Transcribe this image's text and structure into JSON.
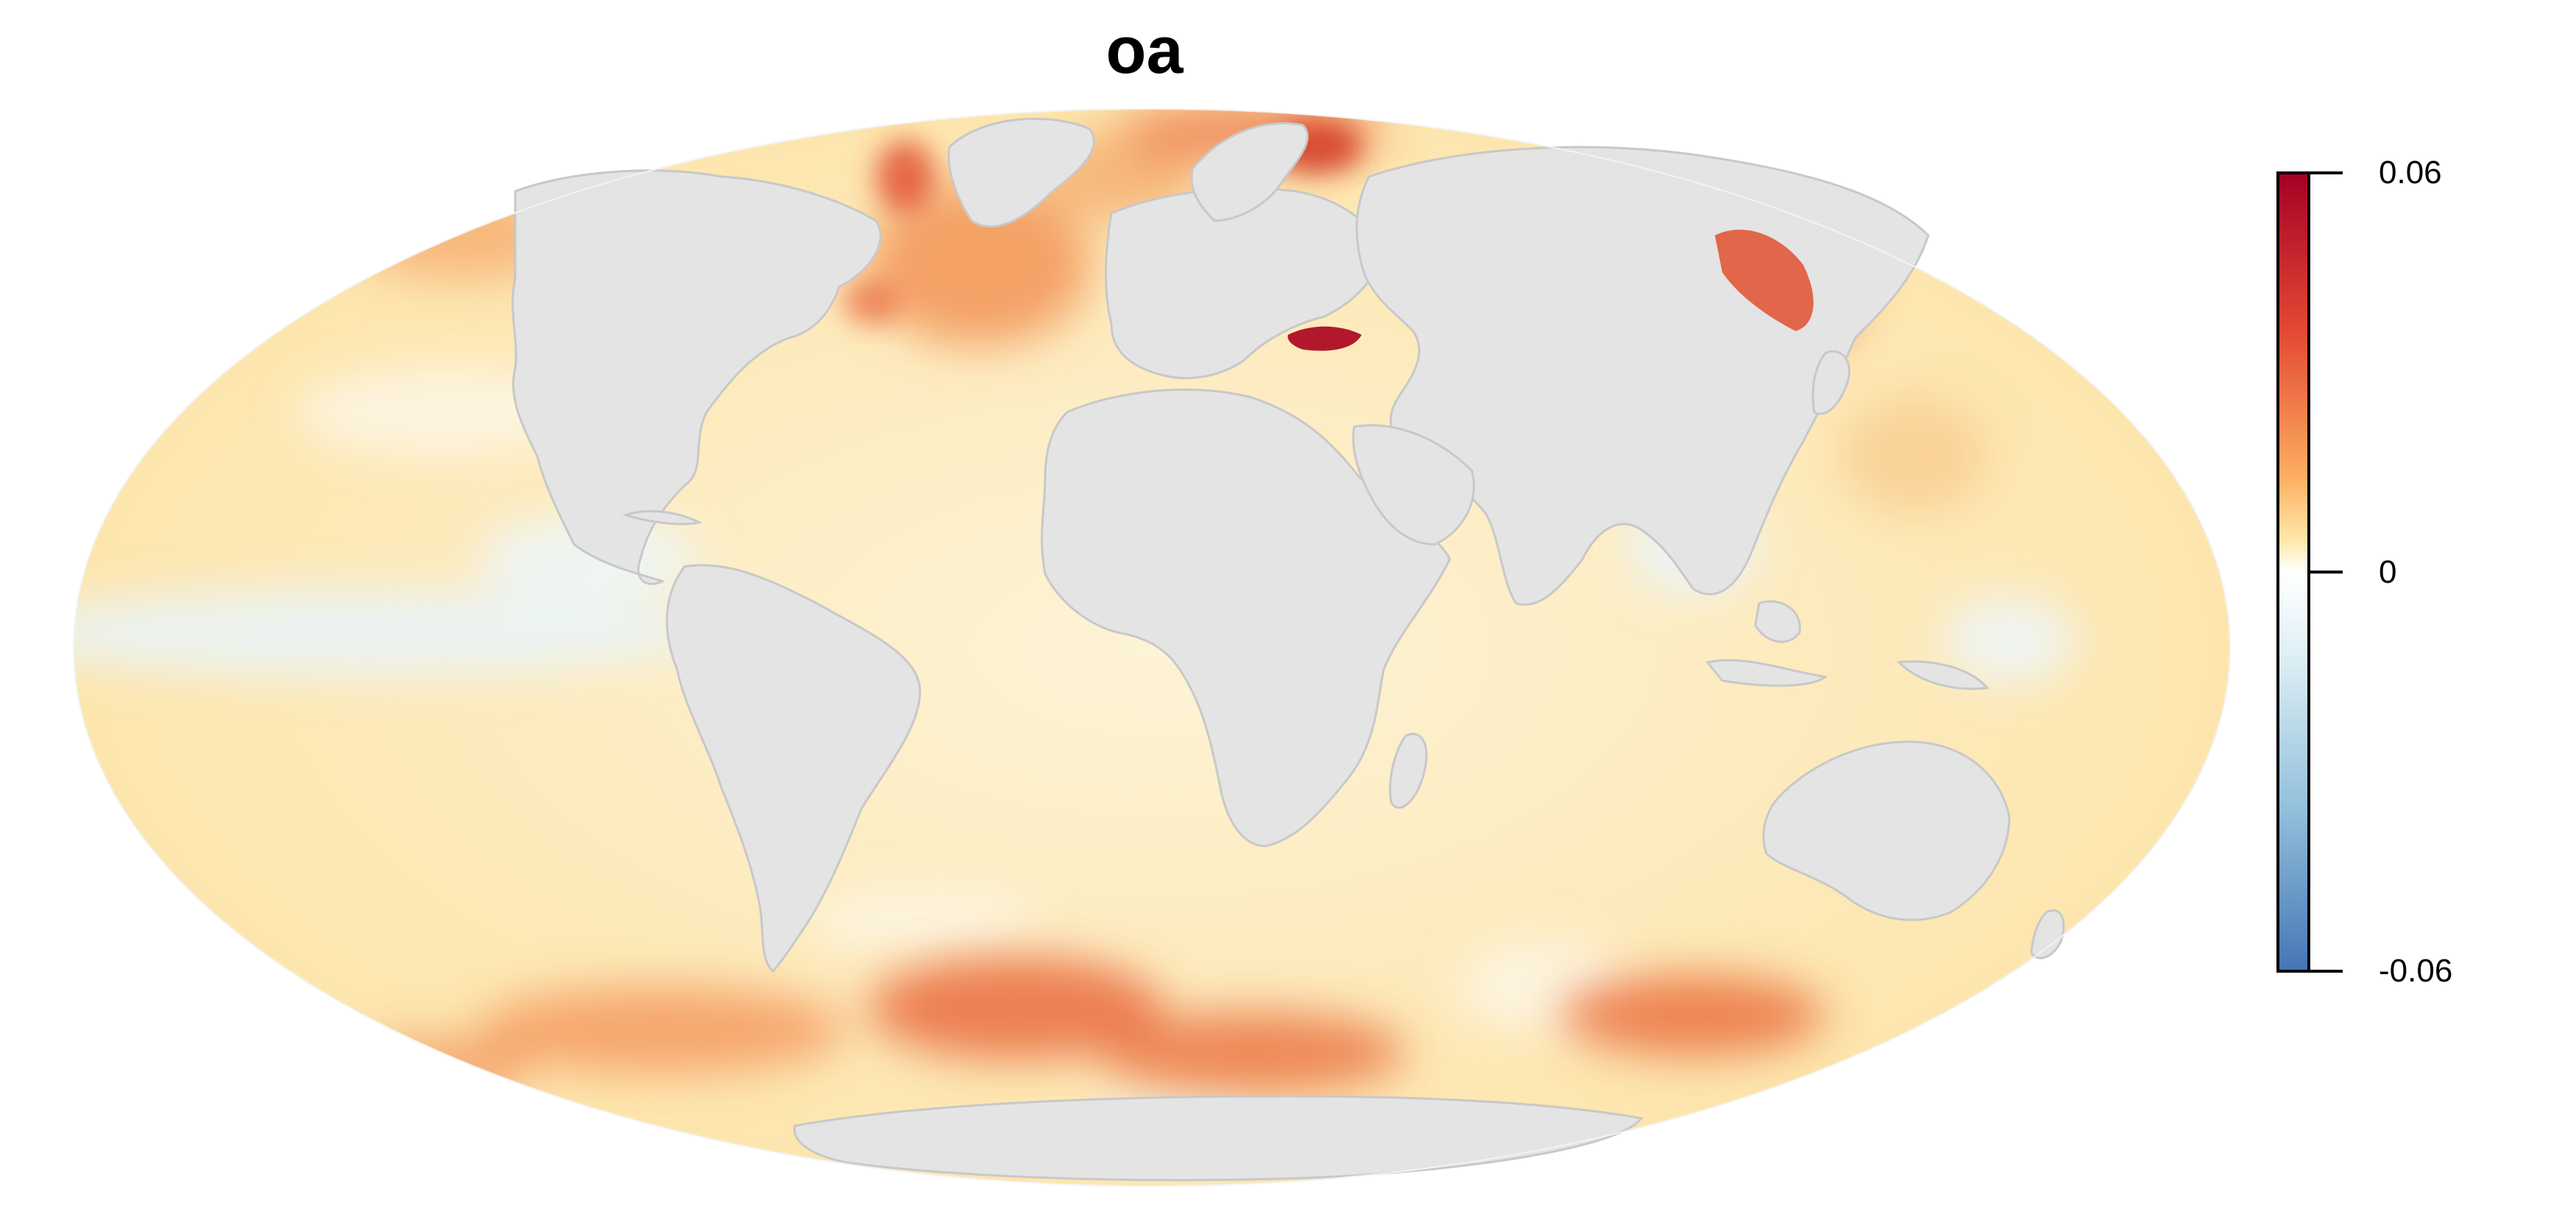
{
  "title": "oa",
  "projection": "mollweide",
  "colorbar": {
    "min": -0.06,
    "max": 0.06,
    "ticks": [
      {
        "value": 0.06,
        "label": "0.06"
      },
      {
        "value": 0,
        "label": "0"
      },
      {
        "value": -0.06,
        "label": "-0.06"
      }
    ],
    "colors": {
      "high": "#a50026",
      "mid_high": "#e34a33",
      "mid_low": "#fdae61",
      "neutral_warm": "#fee090",
      "zero": "#ffffff",
      "cool": "#abd9e9",
      "low": "#4575b4"
    }
  },
  "land_color": "#e4e4e4",
  "border_color": "#c8c8c8",
  "ocean_base_color": "#fde9b8"
}
